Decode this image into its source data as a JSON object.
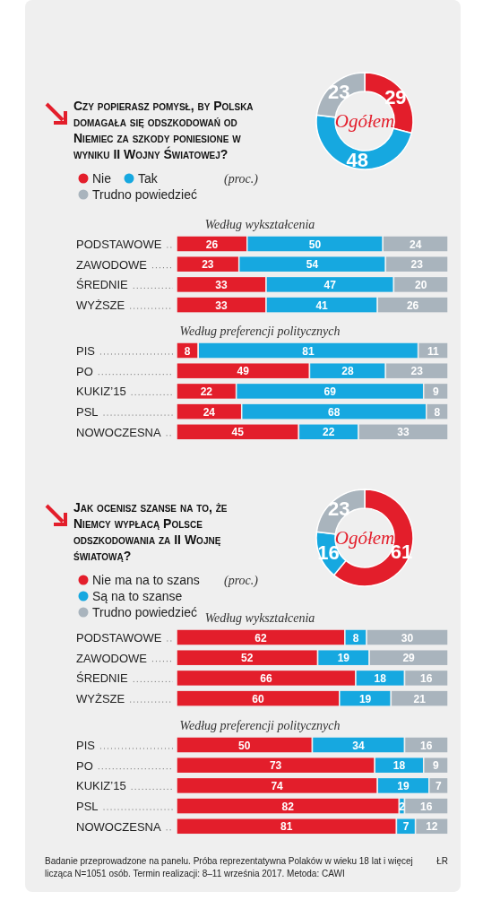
{
  "chart_data": [
    {
      "type": "donut",
      "title": "Czy popierasz pomysł, by Polska domagała się odszkodowań od Niemiec za szkody poniesione w wyniku II Wojny Światowej?",
      "categories": [
        "Nie",
        "Tak",
        "Trudno powiedzieć"
      ],
      "values": [
        29,
        48,
        23
      ],
      "colors": [
        "#e31e2b",
        "#16a8e0",
        "#a9b4bd"
      ],
      "data_labels": true,
      "legend": "left",
      "annotations": [
        "(proc.)",
        "Ogółem"
      ]
    },
    {
      "type": "bar",
      "orientation": "horizontal",
      "stacked": true,
      "title": "Według wykształcenia",
      "categories": [
        "PODSTAWOWE",
        "ZAWODOWE",
        "ŚREDNIE",
        "WYŻSZE"
      ],
      "data_labels": true,
      "tick_labels": "y",
      "series": [
        {
          "color": "#e31e2b",
          "values": [
            26,
            23,
            33,
            33
          ]
        },
        {
          "color": "#16a8e0",
          "values": [
            50,
            54,
            47,
            41
          ]
        },
        {
          "color": "#a9b4bd",
          "values": [
            24,
            23,
            20,
            26
          ]
        }
      ]
    },
    {
      "type": "bar",
      "orientation": "horizontal",
      "stacked": true,
      "title": "Według preferencji politycznych",
      "categories": [
        "PIS",
        "PO",
        "KUKIZ’15",
        "PSL",
        "NOWOCZESNA"
      ],
      "data_labels": true,
      "tick_labels": "y",
      "series": [
        {
          "color": "#e31e2b",
          "values": [
            8,
            49,
            22,
            24,
            45
          ]
        },
        {
          "color": "#16a8e0",
          "values": [
            81,
            28,
            69,
            68,
            22
          ]
        },
        {
          "color": "#a9b4bd",
          "values": [
            11,
            23,
            9,
            8,
            33
          ]
        }
      ]
    },
    {
      "type": "donut",
      "title": "Jak ocenisz szanse na to, że Niemcy wypłacą Polsce odszkodowania za II Wojnę światową?",
      "categories": [
        "Nie ma na to szans",
        "Są na to szanse",
        "Trudno powiedzieć"
      ],
      "values": [
        61,
        16,
        23
      ],
      "colors": [
        "#e31e2b",
        "#16a8e0",
        "#a9b4bd"
      ],
      "data_labels": true,
      "legend": "left",
      "annotations": [
        "(proc.)",
        "Ogółem"
      ]
    },
    {
      "type": "bar",
      "orientation": "horizontal",
      "stacked": true,
      "title": "Według wykształcenia",
      "categories": [
        "PODSTAWOWE",
        "ZAWODOWE",
        "ŚREDNIE",
        "WYŻSZE"
      ],
      "data_labels": true,
      "tick_labels": "y",
      "series": [
        {
          "color": "#e31e2b",
          "values": [
            62,
            52,
            66,
            60
          ]
        },
        {
          "color": "#16a8e0",
          "values": [
            8,
            19,
            18,
            19
          ]
        },
        {
          "color": "#a9b4bd",
          "values": [
            30,
            29,
            16,
            21
          ]
        }
      ]
    },
    {
      "type": "bar",
      "orientation": "horizontal",
      "stacked": true,
      "title": "Według preferencji politycznych",
      "categories": [
        "PIS",
        "PO",
        "KUKIZ’15",
        "PSL",
        "NOWOCZESNA"
      ],
      "data_labels": true,
      "tick_labels": "y",
      "annotations": [
        "Badanie przeprowadzone na panelu. Próba reprezentatywna Polaków w wieku 18 lat i więcej licząca N=1051 osób. Termin realizacji: 8–11 września 2017. Metoda: CAWI",
        "ŁR"
      ],
      "series": [
        {
          "color": "#e31e2b",
          "values": [
            50,
            73,
            74,
            82,
            81
          ]
        },
        {
          "color": "#16a8e0",
          "values": [
            34,
            18,
            19,
            2,
            7
          ]
        },
        {
          "color": "#a9b4bd",
          "values": [
            16,
            9,
            7,
            16,
            12
          ]
        }
      ]
    }
  ]
}
